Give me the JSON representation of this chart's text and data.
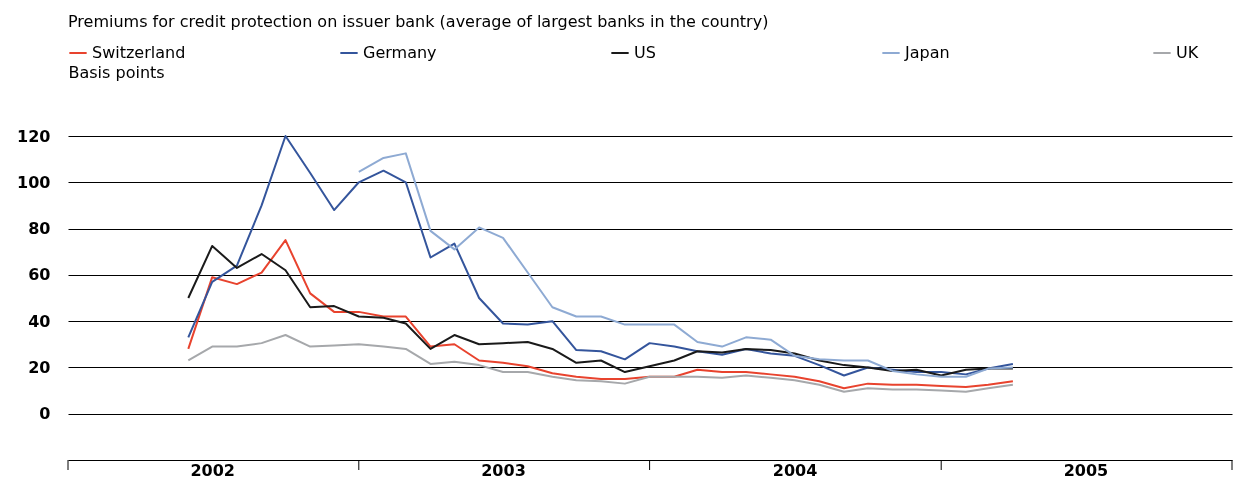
{
  "chart_data": {
    "type": "line",
    "title": "Premiums for credit protection on issuer bank (average of largest banks in the country)",
    "ylabel": "Basis points",
    "x": [
      "2002-06",
      "2002-07",
      "2002-08",
      "2002-09",
      "2002-10",
      "2002-11",
      "2002-12",
      "2003-01",
      "2003-02",
      "2003-03",
      "2003-04",
      "2003-05",
      "2003-06",
      "2003-07",
      "2003-08",
      "2003-09",
      "2003-10",
      "2003-11",
      "2003-12",
      "2004-01",
      "2004-02",
      "2004-03",
      "2004-04",
      "2004-05",
      "2004-06",
      "2004-07",
      "2004-08",
      "2004-09",
      "2004-10",
      "2004-11",
      "2004-12",
      "2005-01",
      "2005-02",
      "2005-03",
      "2005-04"
    ],
    "series": [
      {
        "name": "Switzerland",
        "color": "#e8432e",
        "values": [
          28,
          59,
          56,
          61,
          75,
          52,
          44,
          44,
          42,
          42,
          29,
          30,
          23,
          22,
          20.5,
          17.5,
          16,
          15,
          15,
          16,
          16,
          19,
          18,
          18,
          17,
          16,
          14,
          11,
          13,
          12.5,
          12.5,
          12,
          11.5,
          12.5,
          14
        ]
      },
      {
        "name": "Germany",
        "color": "#34559c",
        "values": [
          33,
          57,
          64,
          90,
          120,
          104,
          88,
          100,
          105,
          100,
          67.5,
          73.5,
          50,
          39,
          38.5,
          40,
          27.5,
          27,
          23.5,
          30.5,
          29,
          27,
          25.5,
          28,
          26,
          25,
          21,
          16.5,
          20,
          19,
          18,
          18,
          17,
          19.5,
          21.5
        ]
      },
      {
        "name": "US",
        "color": "#1a1a1a",
        "values": [
          50,
          72.5,
          63,
          69,
          62,
          46,
          46.5,
          42,
          41.5,
          39,
          28,
          34,
          30,
          30.5,
          31,
          28,
          22,
          23,
          18,
          20.5,
          23,
          27,
          26.5,
          28,
          27.5,
          26,
          23,
          21,
          20,
          18.5,
          19,
          16.5,
          19,
          19.5,
          19.5
        ]
      },
      {
        "name": "Japan",
        "color": "#8eaad3",
        "values": [
          null,
          null,
          null,
          null,
          null,
          null,
          null,
          104.5,
          110.5,
          112.5,
          79,
          71,
          80.5,
          76,
          61,
          46,
          42,
          42,
          38.5,
          38.5,
          38.5,
          31,
          29,
          33,
          32,
          25,
          23.5,
          23,
          23,
          18.5,
          17,
          16,
          16,
          19.5,
          20
        ]
      },
      {
        "name": "UK",
        "color": "#a6a8ab",
        "values": [
          23,
          29,
          29,
          30.5,
          34,
          29,
          29.5,
          30,
          29,
          28,
          21.5,
          22.5,
          21,
          18,
          18,
          16,
          14.5,
          14,
          13,
          16,
          16,
          16,
          15.5,
          16.5,
          15.5,
          14.5,
          12.5,
          9.5,
          11,
          10.5,
          10.5,
          10,
          9.5,
          11,
          12.5
        ]
      }
    ],
    "xlim": [
      "2002-01",
      "2006-01"
    ],
    "xticks": [
      {
        "value": "2002-01",
        "label": null
      },
      {
        "value": "2002-07",
        "label": "2002"
      },
      {
        "value": "2003-01",
        "label": null
      },
      {
        "value": "2003-07",
        "label": "2003"
      },
      {
        "value": "2004-01",
        "label": null
      },
      {
        "value": "2004-07",
        "label": "2004"
      },
      {
        "value": "2005-01",
        "label": null
      },
      {
        "value": "2005-07",
        "label": "2005"
      },
      {
        "value": "2006-01",
        "label": null
      }
    ],
    "ylim": [
      -20,
      120
    ],
    "yticks": [
      0,
      20,
      40,
      60,
      80,
      100,
      120
    ],
    "grid": "y",
    "legend": "top",
    "line_style": "solid",
    "marker": "none"
  }
}
